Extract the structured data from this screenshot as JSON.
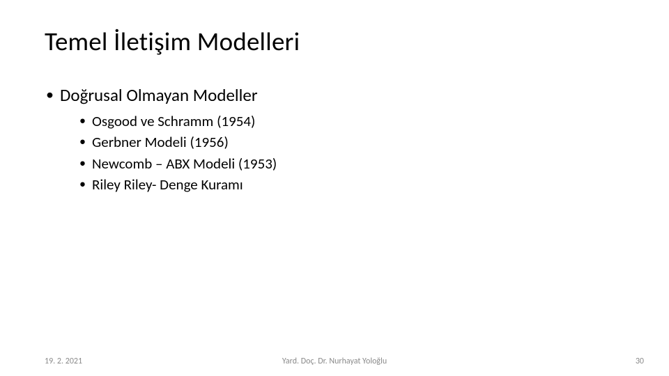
{
  "slide": {
    "title": "Temel İletişim Modelleri",
    "level1": {
      "item": "Doğrusal Olmayan Modeller"
    },
    "level2": {
      "items": [
        "Osgood ve Schramm (1954)",
        "Gerbner Modeli  (1956)",
        "Newcomb – ABX Modeli (1953)",
        "Riley Riley- Denge Kuramı"
      ]
    }
  },
  "footer": {
    "date": "19. 2. 2021",
    "author": "Yard. Doç. Dr. Nurhayat Yoloğlu",
    "page": "30"
  },
  "style": {
    "background_color": "#ffffff",
    "title_fontsize": 37,
    "title_color": "#000000",
    "level1_fontsize": 25,
    "level2_fontsize": 21,
    "bullet_char": "•",
    "footer_fontsize": 12,
    "footer_color": "#8a8a8a",
    "font_family": "Calibri"
  }
}
